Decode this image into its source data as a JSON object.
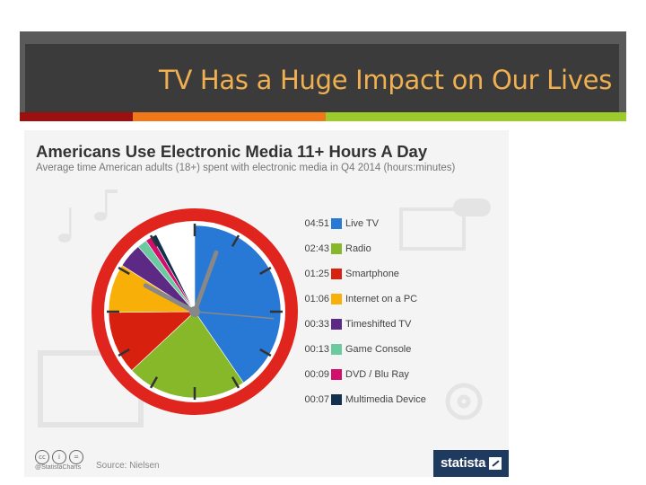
{
  "slide": {
    "title": "TV Has a Huge Impact on Our Lives"
  },
  "colors": {
    "title_text": "#f0b050",
    "stripe_red": "#9c1010",
    "stripe_orange": "#f07818",
    "stripe_green": "#9ccc2c",
    "clock_ring": "#e0251e",
    "brand_bg": "#1f3a5f"
  },
  "chart_data": {
    "type": "pie",
    "title": "Americans Use Electronic Media 11+ Hours A Day",
    "subtitle": "Average time American adults (18+) spent with electronic media in Q4 2014 (hours:minutes)",
    "legend_position": "right",
    "slices": [
      {
        "label": "Live TV",
        "time": "04:51",
        "minutes": 291,
        "color": "#2878d6"
      },
      {
        "label": "Radio",
        "time": "02:43",
        "minutes": 163,
        "color": "#86b82a"
      },
      {
        "label": "Smartphone",
        "time": "01:25",
        "minutes": 85,
        "color": "#d8200e"
      },
      {
        "label": "Internet on a PC",
        "time": "01:06",
        "minutes": 66,
        "color": "#f8b008"
      },
      {
        "label": "Timeshifted TV",
        "time": "00:33",
        "minutes": 33,
        "color": "#5c2a84"
      },
      {
        "label": "Game Console",
        "time": "00:13",
        "minutes": 13,
        "color": "#6ccaa0"
      },
      {
        "label": "DVD / Blu Ray",
        "time": "00:09",
        "minutes": 9,
        "color": "#d0106c"
      },
      {
        "label": "Multimedia Device",
        "time": "00:07",
        "minutes": 7,
        "color": "#13314e"
      }
    ],
    "source": "Source: Nielsen",
    "handle": "@StatistaCharts",
    "brand": "statista"
  },
  "icons": [
    "music-note-icon",
    "monitor-icon",
    "gamepad-icon",
    "disc-icon",
    "creative-commons-icon",
    "attribution-icon",
    "no-derivatives-icon",
    "statista-logo-icon"
  ]
}
